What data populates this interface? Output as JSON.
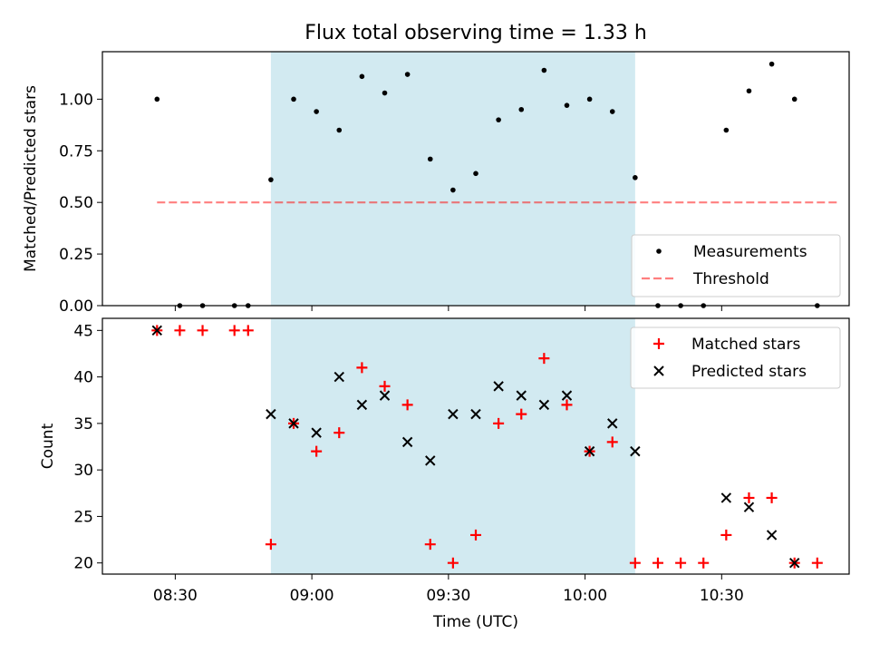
{
  "title": "Flux total observing time = 1.33 h",
  "colors": {
    "shade": "#add8e6",
    "measurement": "#000000",
    "threshold": "#ff0000",
    "matched": "#ff0000",
    "predicted": "#000000"
  },
  "chart_data": [
    {
      "type": "scatter",
      "panel": "top",
      "ylabel": "Matched/Predicted stars",
      "xlabel": "",
      "ylim": [
        0,
        1.23
      ],
      "yticks": [
        "0.00",
        "0.25",
        "0.50",
        "0.75",
        "1.00"
      ],
      "ytick_values": [
        0,
        0.25,
        0.5,
        0.75,
        1.0
      ],
      "shaded_span": [
        "08:51",
        "10:11"
      ],
      "legend_position": "lower-right",
      "legend": [
        "Measurements",
        "Threshold"
      ],
      "threshold": {
        "name": "Threshold",
        "value": 0.5,
        "x": [
          "08:26",
          "10:56"
        ]
      },
      "series": [
        {
          "name": "Measurements",
          "points": [
            [
              "08:26",
              1.0
            ],
            [
              "08:31",
              0.0
            ],
            [
              "08:36",
              0.0
            ],
            [
              "08:43",
              0.0
            ],
            [
              "08:46",
              0.0
            ],
            [
              "08:51",
              0.61
            ],
            [
              "08:56",
              1.0
            ],
            [
              "09:01",
              0.94
            ],
            [
              "09:06",
              0.85
            ],
            [
              "09:11",
              1.11
            ],
            [
              "09:16",
              1.03
            ],
            [
              "09:21",
              1.12
            ],
            [
              "09:26",
              0.71
            ],
            [
              "09:31",
              0.56
            ],
            [
              "09:36",
              0.64
            ],
            [
              "09:41",
              0.9
            ],
            [
              "09:46",
              0.95
            ],
            [
              "09:51",
              1.14
            ],
            [
              "09:56",
              0.97
            ],
            [
              "10:01",
              1.0
            ],
            [
              "10:06",
              0.94
            ],
            [
              "10:11",
              0.62
            ],
            [
              "10:16",
              0.0
            ],
            [
              "10:21",
              0.0
            ],
            [
              "10:26",
              0.0
            ],
            [
              "10:31",
              0.85
            ],
            [
              "10:36",
              1.04
            ],
            [
              "10:41",
              1.17
            ],
            [
              "10:46",
              1.0
            ],
            [
              "10:51",
              0.0
            ]
          ]
        }
      ]
    },
    {
      "type": "scatter",
      "panel": "bottom",
      "ylabel": "Count",
      "xlabel": "Time (UTC)",
      "ylim": [
        18.8,
        46.3
      ],
      "yticks": [
        "20",
        "25",
        "30",
        "35",
        "40",
        "45"
      ],
      "ytick_values": [
        20,
        25,
        30,
        35,
        40,
        45
      ],
      "xticks": [
        "08:30",
        "09:00",
        "09:30",
        "10:00",
        "10:30"
      ],
      "xlim": [
        "08:14",
        "10:58"
      ],
      "shaded_span": [
        "08:51",
        "10:11"
      ],
      "legend_position": "upper-right",
      "legend": [
        "Matched stars",
        "Predicted stars"
      ],
      "series": [
        {
          "name": "Matched stars",
          "points": [
            [
              "08:26",
              45
            ],
            [
              "08:31",
              45
            ],
            [
              "08:36",
              45
            ],
            [
              "08:43",
              45
            ],
            [
              "08:46",
              45
            ],
            [
              "08:51",
              22
            ],
            [
              "08:56",
              35
            ],
            [
              "09:01",
              32
            ],
            [
              "09:06",
              34
            ],
            [
              "09:11",
              41
            ],
            [
              "09:16",
              39
            ],
            [
              "09:21",
              37
            ],
            [
              "09:26",
              22
            ],
            [
              "09:31",
              20
            ],
            [
              "09:36",
              23
            ],
            [
              "09:41",
              35
            ],
            [
              "09:46",
              36
            ],
            [
              "09:51",
              42
            ],
            [
              "09:56",
              37
            ],
            [
              "10:01",
              32
            ],
            [
              "10:06",
              33
            ],
            [
              "10:11",
              20
            ],
            [
              "10:16",
              20
            ],
            [
              "10:21",
              20
            ],
            [
              "10:26",
              20
            ],
            [
              "10:31",
              23
            ],
            [
              "10:36",
              27
            ],
            [
              "10:41",
              27
            ],
            [
              "10:46",
              20
            ],
            [
              "10:51",
              20
            ]
          ]
        },
        {
          "name": "Predicted stars",
          "points": [
            [
              "08:26",
              45
            ],
            [
              "08:51",
              36
            ],
            [
              "08:56",
              35
            ],
            [
              "09:01",
              34
            ],
            [
              "09:06",
              40
            ],
            [
              "09:11",
              37
            ],
            [
              "09:16",
              38
            ],
            [
              "09:21",
              33
            ],
            [
              "09:26",
              31
            ],
            [
              "09:31",
              36
            ],
            [
              "09:36",
              36
            ],
            [
              "09:41",
              39
            ],
            [
              "09:46",
              38
            ],
            [
              "09:51",
              37
            ],
            [
              "09:56",
              38
            ],
            [
              "10:01",
              32
            ],
            [
              "10:06",
              35
            ],
            [
              "10:11",
              32
            ],
            [
              "10:31",
              27
            ],
            [
              "10:36",
              26
            ],
            [
              "10:41",
              23
            ],
            [
              "10:46",
              20
            ]
          ]
        }
      ]
    }
  ]
}
